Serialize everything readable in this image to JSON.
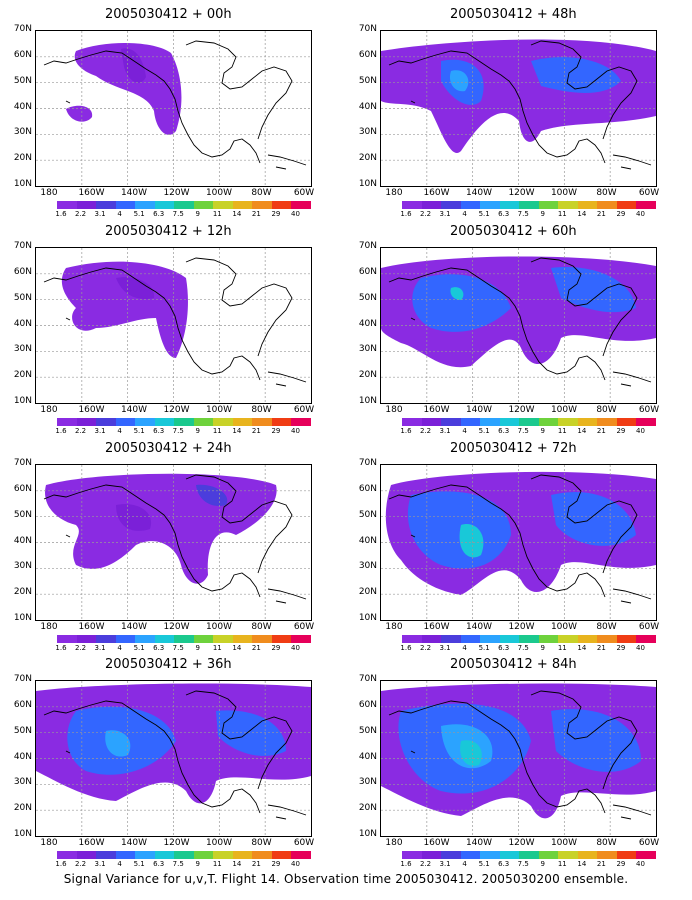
{
  "panels": [
    {
      "title": "2005030412 + 00h"
    },
    {
      "title": "2005030412 + 48h"
    },
    {
      "title": "2005030412 + 12h"
    },
    {
      "title": "2005030412 + 60h"
    },
    {
      "title": "2005030412 + 24h"
    },
    {
      "title": "2005030412 + 72h"
    },
    {
      "title": "2005030412 + 36h"
    },
    {
      "title": "2005030412 + 84h"
    }
  ],
  "lat_labels": [
    "70N",
    "60N",
    "50N",
    "40N",
    "30N",
    "20N",
    "10N"
  ],
  "lon_labels": [
    "180",
    "160W",
    "140W",
    "120W",
    "100W",
    "80W",
    "60W"
  ],
  "colorbar": {
    "labels": [
      "1.6",
      "2.2",
      "3.1",
      "4",
      "5.1",
      "6.3",
      "7.5",
      "9",
      "11",
      "14",
      "21",
      "29",
      "40"
    ],
    "colors": [
      "#8a2be2",
      "#7b20d8",
      "#4b3ddc",
      "#3366ff",
      "#2ba3ff",
      "#19c8d8",
      "#1bc98e",
      "#6ed23c",
      "#c8d228",
      "#e8b41e",
      "#f08c1e",
      "#f03c14",
      "#e6005a"
    ]
  },
  "footer": "Signal Variance for u,v,T. Flight 14. Observation time 2005030412. 2005030200 ensemble."
}
